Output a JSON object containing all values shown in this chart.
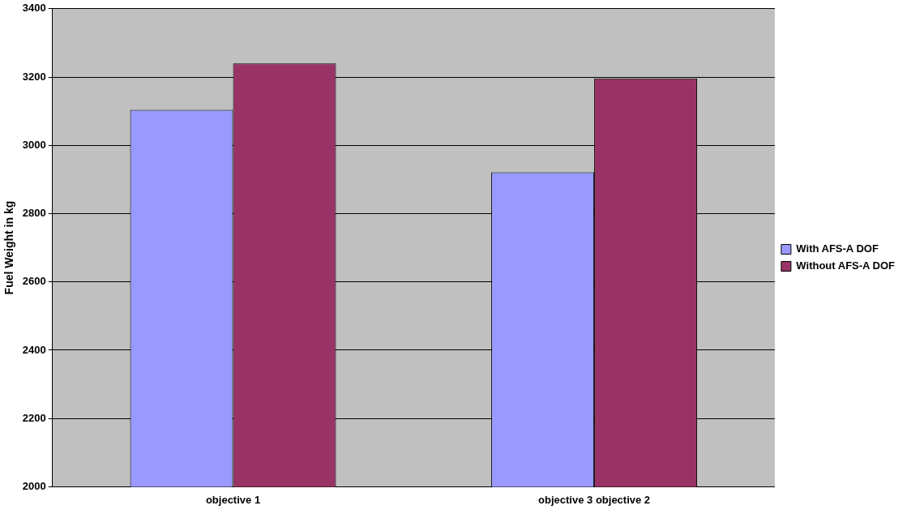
{
  "chart_data": {
    "type": "bar",
    "ylabel": "Fuel Weight in kg",
    "categories": [
      "objective 1",
      "objective 3 objective 2"
    ],
    "series": [
      {
        "name": "With AFS-A DOF",
        "color": "#9999ff",
        "values": [
          3104,
          2921
        ]
      },
      {
        "name": "Without AFS-A DOF",
        "color": "#993366",
        "values": [
          3240,
          3196
        ]
      }
    ],
    "ylim": [
      2000,
      3400
    ],
    "yticks": [
      2000,
      2200,
      2400,
      2600,
      2800,
      3000,
      3200,
      3400
    ],
    "grid": "y",
    "legend": "right"
  }
}
